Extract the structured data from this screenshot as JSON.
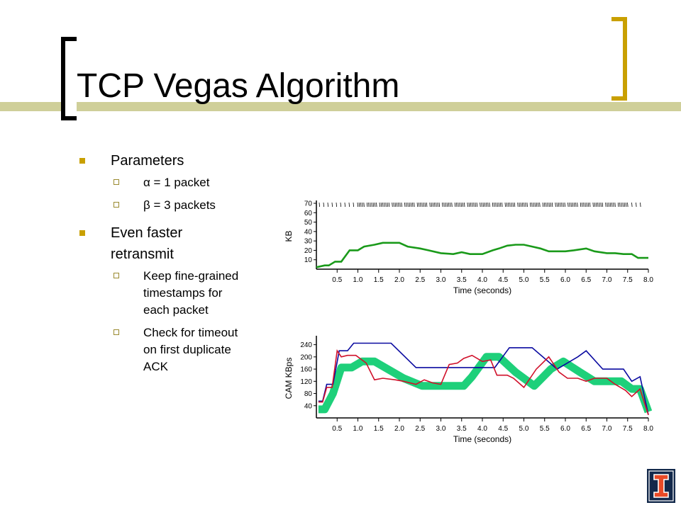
{
  "slide": {
    "title": "TCP Vegas Algorithm",
    "bullets": [
      {
        "text": "Parameters",
        "sub": [
          "α = 1 packet",
          "β = 3 packets"
        ]
      },
      {
        "text": "Even faster retransmit",
        "sub": [
          "Keep fine-grained timestamps for each packet",
          "Check for timeout on first duplicate ACK"
        ]
      }
    ]
  },
  "colors": {
    "accent_gold": "#c9a000",
    "band": "#cfcf99",
    "green": "#1a9a1a",
    "mint": "#1ed07a",
    "blue": "#0a0aa0",
    "red": "#d0102a",
    "logo_blue": "#13294b",
    "logo_orange": "#e84a27"
  },
  "chart_data": [
    {
      "type": "line",
      "xlabel": "Time (seconds)",
      "ylabel": "KB",
      "xlim": [
        0,
        8
      ],
      "ylim": [
        0,
        70
      ],
      "xticks": [
        "0.5",
        "1.0",
        "1.5",
        "2.0",
        "2.5",
        "3.0",
        "3.5",
        "4.0",
        "4.5",
        "5.0",
        "5.5",
        "6.0",
        "6.5",
        "7.0",
        "7.5",
        "8.0"
      ],
      "yticks": [
        "10",
        "20",
        "30",
        "40",
        "50",
        "60",
        "70"
      ],
      "packet_marks_at_top": true,
      "series": [
        {
          "name": "",
          "color": "#1a9a1a",
          "x": [
            0.0,
            0.2,
            0.3,
            0.45,
            0.6,
            0.8,
            1.0,
            1.15,
            1.4,
            1.6,
            2.0,
            2.2,
            2.5,
            2.7,
            3.0,
            3.3,
            3.5,
            3.7,
            4.0,
            4.25,
            4.4,
            4.6,
            4.8,
            5.0,
            5.2,
            5.4,
            5.6,
            6.0,
            6.2,
            6.5,
            6.7,
            7.0,
            7.2,
            7.4,
            7.6,
            7.75,
            8.0
          ],
          "y": [
            2,
            4,
            4,
            8,
            8,
            20,
            20,
            24,
            26,
            28,
            28,
            24,
            22,
            20,
            17,
            16,
            18,
            16,
            16,
            20,
            22,
            25,
            26,
            26,
            24,
            22,
            19,
            19,
            20,
            22,
            19,
            17,
            17,
            16,
            16,
            12,
            12
          ]
        }
      ]
    },
    {
      "type": "line",
      "xlabel": "Time (seconds)",
      "ylabel": "CAM KBps",
      "xlim": [
        0,
        8
      ],
      "ylim": [
        0,
        260
      ],
      "xticks": [
        "0.5",
        "1.0",
        "1.5",
        "2.0",
        "2.5",
        "3.0",
        "3.5",
        "4.0",
        "4.5",
        "5.0",
        "5.5",
        "6.0",
        "6.5",
        "7.0",
        "7.5",
        "8.0"
      ],
      "yticks": [
        "40",
        "80",
        "120",
        "160",
        "200",
        "240"
      ],
      "series": [
        {
          "name": "",
          "color": "#0a0aa0",
          "x": [
            0.05,
            0.15,
            0.25,
            0.4,
            0.55,
            0.75,
            0.9,
            1.1,
            1.25,
            1.8,
            2.4,
            3.0,
            3.4,
            4.3,
            4.65,
            5.2,
            5.8,
            6.3,
            6.5,
            6.9,
            7.1,
            7.4,
            7.6,
            7.8,
            8.0
          ],
          "y": [
            55,
            55,
            110,
            110,
            220,
            220,
            245,
            245,
            245,
            245,
            165,
            165,
            165,
            165,
            230,
            230,
            160,
            200,
            220,
            160,
            160,
            160,
            120,
            135,
            10
          ]
        },
        {
          "name": "",
          "color": "#d0102a",
          "x": [
            0.05,
            0.15,
            0.25,
            0.38,
            0.5,
            0.6,
            0.75,
            0.95,
            1.2,
            1.4,
            1.6,
            1.9,
            2.1,
            2.4,
            2.6,
            2.8,
            3.0,
            3.2,
            3.4,
            3.55,
            3.75,
            4.0,
            4.2,
            4.35,
            4.6,
            4.75,
            5.0,
            5.3,
            5.6,
            5.85,
            6.05,
            6.3,
            6.5,
            6.7,
            7.0,
            7.2,
            7.45,
            7.6,
            7.8,
            8.0
          ],
          "y": [
            52,
            52,
            100,
            100,
            220,
            200,
            205,
            205,
            180,
            125,
            130,
            125,
            120,
            110,
            125,
            115,
            110,
            175,
            180,
            195,
            205,
            185,
            190,
            140,
            140,
            130,
            100,
            160,
            200,
            150,
            130,
            130,
            120,
            130,
            130,
            110,
            90,
            70,
            95,
            10
          ]
        },
        {
          "name": "",
          "color": "#1ed07a",
          "band": true,
          "x": [
            0.05,
            0.2,
            0.4,
            0.6,
            0.85,
            1.1,
            1.4,
            2.1,
            2.55,
            3.0,
            3.55,
            3.75,
            4.1,
            4.4,
            4.8,
            5.25,
            5.65,
            5.95,
            6.35,
            6.7,
            7.1,
            7.35,
            7.6,
            7.8,
            8.0
          ],
          "y": [
            28,
            28,
            80,
            165,
            165,
            185,
            185,
            130,
            105,
            105,
            105,
            135,
            200,
            200,
            150,
            105,
            160,
            185,
            150,
            120,
            120,
            120,
            95,
            95,
            20
          ]
        }
      ]
    }
  ]
}
